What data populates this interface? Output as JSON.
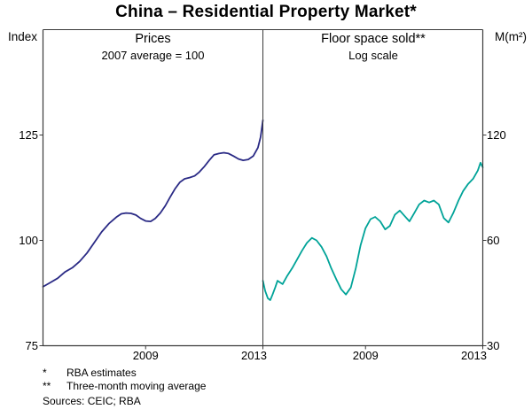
{
  "title": "China – Residential Property Market*",
  "footnotes": [
    {
      "marker": "*",
      "text": "RBA estimates"
    },
    {
      "marker": "**",
      "text": "Three-month moving average"
    }
  ],
  "sources": "Sources: CEIC; RBA",
  "chart_data": [
    {
      "type": "line",
      "panel": "left",
      "series_name": "prices-series-line",
      "title": "Prices",
      "subtitle": "2007 average = 100",
      "unit_label": "Index",
      "yscale": "linear",
      "ylim": [
        75,
        150
      ],
      "yticks": [
        75,
        100,
        125
      ],
      "xlim": [
        2005.5,
        2013
      ],
      "xticks": [
        2009,
        2013
      ],
      "color": "#2a2a85",
      "x": [
        2005.5,
        2005.75,
        2006,
        2006.25,
        2006.5,
        2006.75,
        2007,
        2007.25,
        2007.5,
        2007.75,
        2008,
        2008.17,
        2008.33,
        2008.5,
        2008.67,
        2008.83,
        2009,
        2009.17,
        2009.33,
        2009.5,
        2009.67,
        2009.83,
        2010,
        2010.17,
        2010.33,
        2010.5,
        2010.67,
        2010.83,
        2011,
        2011.17,
        2011.33,
        2011.5,
        2011.67,
        2011.83,
        2012,
        2012.17,
        2012.33,
        2012.5,
        2012.67,
        2012.83,
        2012.92,
        2013
      ],
      "values": [
        89,
        90,
        91,
        92.5,
        93.5,
        95,
        97,
        99.5,
        102,
        104,
        105.5,
        106.3,
        106.5,
        106.4,
        106,
        105.2,
        104.6,
        104.5,
        105.2,
        106.5,
        108.2,
        110.2,
        112.2,
        113.8,
        114.6,
        114.9,
        115.3,
        116.2,
        117.5,
        119,
        120.3,
        120.6,
        120.8,
        120.6,
        120,
        119.3,
        119,
        119.2,
        120,
        122,
        124.5,
        128.5
      ]
    },
    {
      "type": "line",
      "panel": "right",
      "series_name": "floor-space-series-line",
      "title": "Floor space sold**",
      "subtitle": "Log scale",
      "unit_label": "M(m²)",
      "yscale": "log",
      "ylim": [
        30,
        240
      ],
      "yticks": [
        30,
        60,
        120
      ],
      "xlim": [
        2005.5,
        2013
      ],
      "xticks": [
        2009,
        2013
      ],
      "color": "#00a398",
      "x": [
        2005.5,
        2005.58,
        2005.67,
        2005.75,
        2005.83,
        2005.92,
        2006,
        2006.17,
        2006.33,
        2006.5,
        2006.67,
        2006.83,
        2007,
        2007.17,
        2007.33,
        2007.5,
        2007.67,
        2007.83,
        2008,
        2008.17,
        2008.33,
        2008.5,
        2008.67,
        2008.83,
        2009,
        2009.17,
        2009.33,
        2009.5,
        2009.67,
        2009.83,
        2010,
        2010.17,
        2010.33,
        2010.5,
        2010.67,
        2010.83,
        2011,
        2011.17,
        2011.33,
        2011.5,
        2011.67,
        2011.83,
        2012,
        2012.17,
        2012.33,
        2012.5,
        2012.67,
        2012.83,
        2012.92,
        2013
      ],
      "values": [
        46,
        43,
        41,
        40.5,
        42,
        44,
        46,
        45,
        47.5,
        50,
        53,
        56,
        59,
        61,
        60,
        57.5,
        54,
        50,
        46.5,
        43.5,
        42,
        44,
        50,
        58,
        65,
        69,
        70,
        68,
        64.5,
        66,
        71,
        73,
        70.5,
        68,
        72,
        76,
        78,
        77,
        78,
        76,
        69.5,
        67.5,
        72,
        78,
        83,
        87,
        90,
        95,
        100,
        97
      ]
    }
  ]
}
